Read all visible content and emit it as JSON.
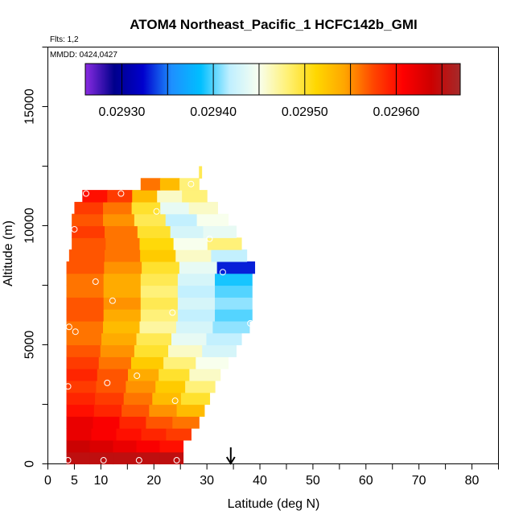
{
  "chart_data": {
    "type": "heatmap",
    "title": "ATOM4 Northeast_Pacific_1 HCFC142b_GMI",
    "flights_note": "Flts: 1,2",
    "date_note": "MMDD: 0424,0427",
    "xlabel": "Latitude (deg N)",
    "ylabel": "Altitude (m)",
    "xlim": [
      0,
      85
    ],
    "ylim": [
      0,
      17500
    ],
    "x_tick_labels": [
      "0",
      "5",
      "10",
      "20",
      "30",
      "40",
      "50",
      "60",
      "70",
      "80"
    ],
    "x_tick_values": [
      0,
      5,
      10,
      20,
      30,
      40,
      50,
      60,
      70,
      80
    ],
    "y_tick_labels": [
      "0",
      "5000",
      "10000",
      "15000"
    ],
    "y_tick_values": [
      0,
      5000,
      10000,
      15000
    ],
    "colorbar": {
      "range": [
        0.02926,
        0.02967
      ],
      "tick_labels": [
        "0.02930",
        "0.02940",
        "0.02950",
        "0.02960"
      ],
      "tick_values": [
        0.0293,
        0.0294,
        0.0295,
        0.0296
      ],
      "colors": [
        "#8a2be2",
        "#00008b",
        "#0000cd",
        "#1e90ff",
        "#00bfff",
        "#bfefff",
        "#f8fff0",
        "#fff176",
        "#ffd700",
        "#ffa500",
        "#ff4500",
        "#ff0000",
        "#cd0000",
        "#a52a2a"
      ]
    },
    "marker_latitude": 34.5,
    "series": [
      {
        "alt": 250,
        "lat_start": 3.5,
        "lat_end": 25.5,
        "values": [
          0.02965,
          0.02965,
          0.02965,
          0.02965,
          0.02965
        ]
      },
      {
        "alt": 750,
        "lat_start": 3.5,
        "lat_end": 25.5,
        "values": [
          0.02964,
          0.02963,
          0.02962,
          0.02961,
          0.0296
        ]
      },
      {
        "alt": 1250,
        "lat_start": 3.5,
        "lat_end": 27.0,
        "values": [
          0.02962,
          0.02961,
          0.0296,
          0.02959,
          0.02958
        ]
      },
      {
        "alt": 1750,
        "lat_start": 3.5,
        "lat_end": 28.5,
        "values": [
          0.02962,
          0.02961,
          0.02959,
          0.02957,
          0.02956
        ]
      },
      {
        "alt": 2250,
        "lat_start": 3.5,
        "lat_end": 29.5,
        "values": [
          0.0296,
          0.02959,
          0.02957,
          0.02955,
          0.02953
        ]
      },
      {
        "alt": 2750,
        "lat_start": 3.5,
        "lat_end": 30.5,
        "values": [
          0.02959,
          0.02958,
          0.02956,
          0.02953,
          0.0295
        ]
      },
      {
        "alt": 3250,
        "lat_start": 3.5,
        "lat_end": 31.5,
        "values": [
          0.02958,
          0.02957,
          0.02955,
          0.02952,
          0.02948
        ]
      },
      {
        "alt": 3750,
        "lat_start": 3.5,
        "lat_end": 32.5,
        "values": [
          0.02959,
          0.02957,
          0.02954,
          0.0295,
          0.02946
        ]
      },
      {
        "alt": 4250,
        "lat_start": 3.5,
        "lat_end": 34.0,
        "values": [
          0.02958,
          0.02956,
          0.02952,
          0.02948,
          0.02945
        ]
      },
      {
        "alt": 4750,
        "lat_start": 3.5,
        "lat_end": 35.5,
        "values": [
          0.02957,
          0.02955,
          0.0295,
          0.02946,
          0.02943
        ]
      },
      {
        "alt": 5250,
        "lat_start": 3.5,
        "lat_end": 36.5,
        "values": [
          0.02956,
          0.02954,
          0.02949,
          0.02944,
          0.02942
        ]
      },
      {
        "alt": 5750,
        "lat_start": 3.5,
        "lat_end": 38.0,
        "values": [
          0.02956,
          0.02953,
          0.02947,
          0.02943,
          0.02941
        ]
      },
      {
        "alt": 6250,
        "lat_start": 3.5,
        "lat_end": 38.5,
        "values": [
          0.02957,
          0.02954,
          0.02948,
          0.02942,
          0.0294
        ]
      },
      {
        "alt": 6750,
        "lat_start": 3.5,
        "lat_end": 38.5,
        "values": [
          0.02957,
          0.02955,
          0.02949,
          0.02943,
          0.02941
        ]
      },
      {
        "alt": 7250,
        "lat_start": 3.5,
        "lat_end": 38.5,
        "values": [
          0.02956,
          0.02954,
          0.02948,
          0.02942,
          0.0294
        ]
      },
      {
        "alt": 7750,
        "lat_start": 3.5,
        "lat_end": 38.5,
        "values": [
          0.02956,
          0.02954,
          0.02949,
          0.02943,
          0.02939
        ]
      },
      {
        "alt": 8250,
        "lat_start": 3.5,
        "lat_end": 39.0,
        "values": [
          0.02957,
          0.02955,
          0.0295,
          0.02944,
          0.02933
        ]
      },
      {
        "alt": 8750,
        "lat_start": 4.0,
        "lat_end": 37.5,
        "values": [
          0.02957,
          0.02956,
          0.02952,
          0.02946,
          0.02942
        ]
      },
      {
        "alt": 9250,
        "lat_start": 4.5,
        "lat_end": 36.5,
        "values": [
          0.02957,
          0.02956,
          0.02951,
          0.02945,
          0.02948
        ]
      },
      {
        "alt": 9750,
        "lat_start": 4.5,
        "lat_end": 35.5,
        "values": [
          0.02958,
          0.02956,
          0.0295,
          0.02943,
          0.02944
        ]
      },
      {
        "alt": 10250,
        "lat_start": 4.5,
        "lat_end": 34.0,
        "values": [
          0.02957,
          0.02955,
          0.02949,
          0.02942,
          0.02945
        ]
      },
      {
        "alt": 10750,
        "lat_start": 5.0,
        "lat_end": 32.0,
        "values": [
          0.02958,
          0.02956,
          0.0295,
          0.02944,
          0.02946
        ]
      },
      {
        "alt": 11250,
        "lat_start": 6.5,
        "lat_end": 30.0,
        "values": [
          0.0296,
          0.02958,
          0.02953,
          0.02946,
          0.02948
        ]
      },
      {
        "alt": 11750,
        "lat_start": 17.5,
        "lat_end": 28.5,
        "values": [
          0.02956,
          0.02953,
          0.02948
        ]
      },
      {
        "alt": 12250,
        "lat_start": 28.5,
        "lat_end": 29.0,
        "values": [
          0.02949
        ]
      }
    ],
    "observations": [
      {
        "lat": 3.8,
        "alt": 150
      },
      {
        "lat": 10.5,
        "alt": 150
      },
      {
        "lat": 17.2,
        "alt": 150
      },
      {
        "lat": 24.3,
        "alt": 150
      },
      {
        "lat": 3.8,
        "alt": 3250
      },
      {
        "lat": 11.2,
        "alt": 3400
      },
      {
        "lat": 16.8,
        "alt": 3700
      },
      {
        "lat": 24.0,
        "alt": 2650
      },
      {
        "lat": 5.2,
        "alt": 5550
      },
      {
        "lat": 4.0,
        "alt": 5750
      },
      {
        "lat": 23.5,
        "alt": 6350
      },
      {
        "lat": 38.2,
        "alt": 5900
      },
      {
        "lat": 12.2,
        "alt": 6850
      },
      {
        "lat": 9.0,
        "alt": 7650
      },
      {
        "lat": 33.0,
        "alt": 8050
      },
      {
        "lat": 5.0,
        "alt": 9850
      },
      {
        "lat": 30.5,
        "alt": 9450
      },
      {
        "lat": 20.5,
        "alt": 10600
      },
      {
        "lat": 7.2,
        "alt": 11350
      },
      {
        "lat": 13.8,
        "alt": 11350
      },
      {
        "lat": 27.0,
        "alt": 11750
      }
    ]
  }
}
